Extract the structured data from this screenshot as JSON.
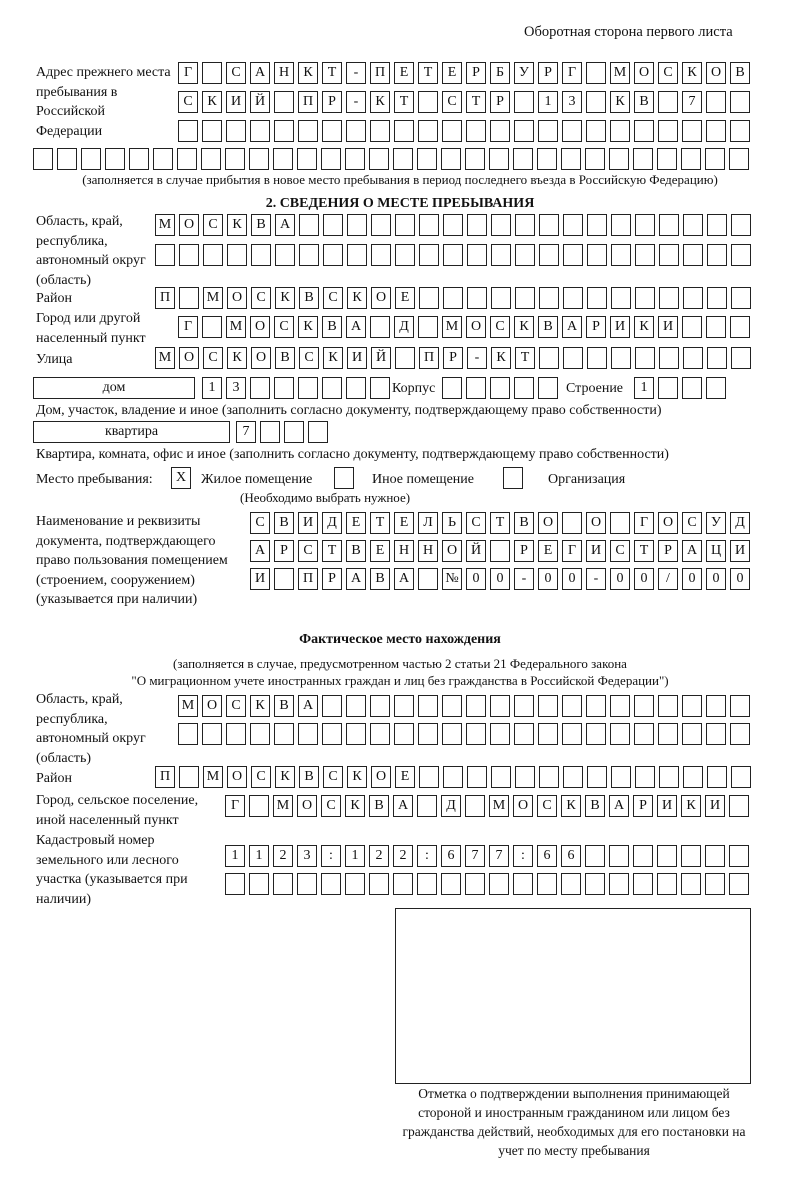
{
  "page_header": "Оборотная сторона первого листа",
  "prev_address": {
    "label": "Адрес прежнего места пребывания в Российской Федерации",
    "rows": [
      [
        "Г",
        "",
        "С",
        "А",
        "Н",
        "К",
        "Т",
        "-",
        "П",
        "Е",
        "Т",
        "Е",
        "Р",
        "Б",
        "У",
        "Р",
        "Г",
        "",
        "М",
        "О",
        "С",
        "К",
        "О",
        "В"
      ],
      [
        "С",
        "К",
        "И",
        "Й",
        "",
        "П",
        "Р",
        "-",
        "К",
        "Т",
        "",
        "С",
        "Т",
        "Р",
        "",
        "1",
        "3",
        "",
        "К",
        "В",
        "",
        "7",
        "",
        ""
      ],
      [
        "",
        "",
        "",
        "",
        "",
        "",
        "",
        "",
        "",
        "",
        "",
        "",
        "",
        "",
        "",
        "",
        "",
        "",
        "",
        "",
        "",
        "",
        "",
        ""
      ],
      [
        "",
        "",
        "",
        "",
        "",
        "",
        "",
        "",
        "",
        "",
        "",
        "",
        "",
        "",
        "",
        "",
        "",
        "",
        "",
        "",
        "",
        "",
        "",
        "",
        "",
        "",
        "",
        "",
        "",
        ""
      ]
    ],
    "note": "(заполняется в случае прибытия в новое место пребывания в период последнего въезда в Российскую Федерацию)"
  },
  "section2": {
    "title": "2. СВЕДЕНИЯ О МЕСТЕ ПРЕБЫВАНИЯ",
    "region_label": "Область, край, республика, автономный округ (область)",
    "region_rows": [
      [
        "М",
        "О",
        "С",
        "К",
        "В",
        "А",
        "",
        "",
        "",
        "",
        "",
        "",
        "",
        "",
        "",
        "",
        "",
        "",
        "",
        "",
        "",
        "",
        "",
        "",
        ""
      ],
      [
        "",
        "",
        "",
        "",
        "",
        "",
        "",
        "",
        "",
        "",
        "",
        "",
        "",
        "",
        "",
        "",
        "",
        "",
        "",
        "",
        "",
        "",
        "",
        "",
        ""
      ]
    ],
    "district_label": "Район",
    "district": [
      "П",
      "",
      "М",
      "О",
      "С",
      "К",
      "В",
      "С",
      "К",
      "О",
      "Е",
      "",
      "",
      "",
      "",
      "",
      "",
      "",
      "",
      "",
      "",
      "",
      "",
      "",
      ""
    ],
    "city_label": "Город или другой населенный пункт",
    "city": [
      "Г",
      "",
      "М",
      "О",
      "С",
      "К",
      "В",
      "А",
      "",
      "Д",
      "",
      "М",
      "О",
      "С",
      "К",
      "В",
      "А",
      "Р",
      "И",
      "К",
      "И",
      "",
      "",
      ""
    ],
    "street_label": "Улица",
    "street": [
      "М",
      "О",
      "С",
      "К",
      "О",
      "В",
      "С",
      "К",
      "И",
      "Й",
      "",
      "П",
      "Р",
      "-",
      "К",
      "Т",
      "",
      "",
      "",
      "",
      "",
      "",
      "",
      "",
      ""
    ],
    "house_type": "дом",
    "house": [
      "1",
      "3",
      "",
      "",
      "",
      "",
      "",
      ""
    ],
    "korpus_label": "Корпус",
    "korpus": [
      "",
      "",
      "",
      "",
      ""
    ],
    "building_label": "Строение",
    "building": [
      "1",
      "",
      "",
      ""
    ],
    "house_note": "Дом, участок, владение и иное (заполнить согласно документу, подтверждающему право собственности)",
    "flat_type": "квартира",
    "flat": [
      "7",
      "",
      "",
      ""
    ],
    "flat_note": "Квартира, комната, офис и иное (заполнить согласно документу, подтверждающему право собственности)",
    "stay_label": "Место пребывания:",
    "stay_options": [
      {
        "mark": "X",
        "label": "Жилое помещение",
        "checked": true
      },
      {
        "mark": "",
        "label": "Иное помещение",
        "checked": false
      },
      {
        "mark": "",
        "label": "Организация",
        "checked": false
      }
    ],
    "stay_note": "(Необходимо выбрать нужное)",
    "doc_label": "Наименование и реквизиты документа, подтверждающего право пользования помещением (строением, сооружением) (указывается при наличии)",
    "doc_rows": [
      [
        "С",
        "В",
        "И",
        "Д",
        "Е",
        "Т",
        "Е",
        "Л",
        "Ь",
        "С",
        "Т",
        "В",
        "О",
        "",
        "О",
        "",
        "Г",
        "О",
        "С",
        "У",
        "Д"
      ],
      [
        "А",
        "Р",
        "С",
        "Т",
        "В",
        "Е",
        "Н",
        "Н",
        "О",
        "Й",
        "",
        "Р",
        "Е",
        "Г",
        "И",
        "С",
        "Т",
        "Р",
        "А",
        "Ц",
        "И"
      ],
      [
        "И",
        "",
        "П",
        "Р",
        "А",
        "В",
        "А",
        "",
        "№",
        "0",
        "0",
        "-",
        "0",
        "0",
        "-",
        "0",
        "0",
        "/",
        "0",
        "0",
        "0"
      ]
    ]
  },
  "actual": {
    "title": "Фактическое место нахождения",
    "note1": "(заполняется в случае, предусмотренном частью 2 статьи 21 Федерального закона",
    "note2": "\"О миграционном учете иностранных граждан и лиц без гражданства в Российской Федерации\")",
    "region_label": "Область, край, республика, автономный округ (область)",
    "region_rows": [
      [
        "М",
        "О",
        "С",
        "К",
        "В",
        "А",
        "",
        "",
        "",
        "",
        "",
        "",
        "",
        "",
        "",
        "",
        "",
        "",
        "",
        "",
        "",
        "",
        "",
        ""
      ],
      [
        "",
        "",
        "",
        "",
        "",
        "",
        "",
        "",
        "",
        "",
        "",
        "",
        "",
        "",
        "",
        "",
        "",
        "",
        "",
        "",
        "",
        "",
        "",
        ""
      ]
    ],
    "district_label": "Район",
    "district": [
      "П",
      "",
      "М",
      "О",
      "С",
      "К",
      "В",
      "С",
      "К",
      "О",
      "Е",
      "",
      "",
      "",
      "",
      "",
      "",
      "",
      "",
      "",
      "",
      "",
      "",
      "",
      ""
    ],
    "city_label": "Город, сельское поселение, иной населенный пункт",
    "city": [
      "Г",
      "",
      "М",
      "О",
      "С",
      "К",
      "В",
      "А",
      "",
      "Д",
      "",
      "М",
      "О",
      "С",
      "К",
      "В",
      "А",
      "Р",
      "И",
      "К",
      "И",
      ""
    ],
    "cadastral_label": "Кадастровый номер земельного или лесного участка (указывается при наличии)",
    "cadastral_rows": [
      [
        "1",
        "1",
        "2",
        "3",
        ":",
        "1",
        "2",
        "2",
        ":",
        "6",
        "7",
        "7",
        ":",
        "6",
        "6",
        "",
        "",
        "",
        "",
        "",
        "",
        ""
      ],
      [
        "",
        "",
        "",
        "",
        "",
        "",
        "",
        "",
        "",
        "",
        "",
        "",
        "",
        "",
        "",
        "",
        "",
        "",
        "",
        "",
        "",
        ""
      ]
    ]
  },
  "confirmation_caption": "Отметка о подтверждении выполнения принимающей стороной и иностранным гражданином или лицом без гражданства действий, необходимых для его постановки на учет по месту пребывания"
}
